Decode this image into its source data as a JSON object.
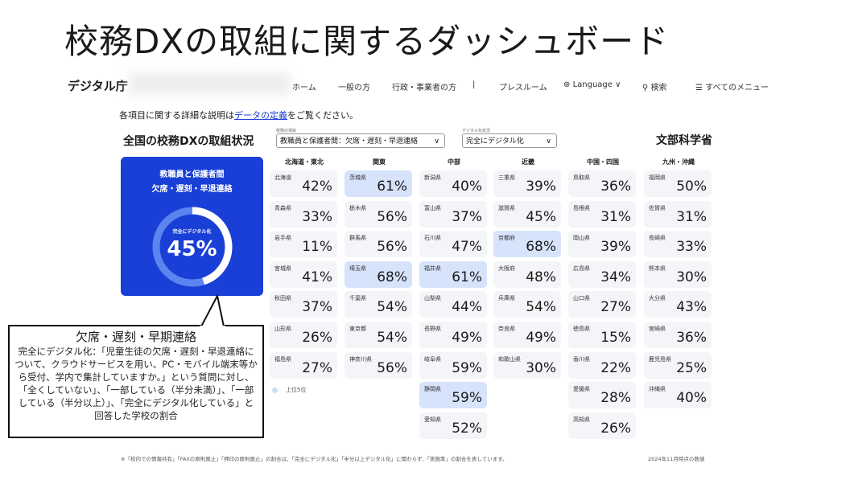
{
  "title": "校務DXの取組に関するダッシュボード",
  "header": {
    "logo": "デジタル庁",
    "nav": [
      "ホーム",
      "一般の方",
      "行政・事業者の方",
      "|",
      "プレスルーム",
      "Language ∨",
      "検索",
      "すべてのメニュー"
    ]
  },
  "intro": {
    "pre": "各項目に関する詳細な説明は",
    "link": "データの定義",
    "post": "をご覧ください。"
  },
  "left_heading": "全国の校務DXの取組状況",
  "filters": [
    {
      "label": "校務の項目",
      "value": "教職員と保護者間：欠席・遅刻・早退連絡"
    },
    {
      "label": "デジタル化状況",
      "value": "完全にデジタル化"
    }
  ],
  "ministry": "文部科学省",
  "summary": {
    "line1": "教職員と保護者間",
    "line2": "欠席・遅刻・早退連絡",
    "label": "完全にデジタル化",
    "value": "45%",
    "fraction": 0.45,
    "colors": {
      "card": "#1a3fd6",
      "arc": "#ffffff",
      "track": "#5b84ef"
    }
  },
  "regions": [
    {
      "name": "北海道・東北",
      "prefs": [
        [
          "北海道",
          "42%",
          0,
          0
        ],
        [
          "青森県",
          "33%",
          1,
          0
        ],
        [
          "岩手県",
          "11%",
          2,
          0
        ],
        [
          "宮城県",
          "41%",
          3,
          0
        ],
        [
          "秋田県",
          "37%",
          4,
          0
        ],
        [
          "山形県",
          "26%",
          5,
          0
        ],
        [
          "福島県",
          "27%",
          6,
          0
        ]
      ]
    },
    {
      "name": "関東",
      "prefs": [
        [
          "茨城県",
          "61%",
          0,
          1
        ],
        [
          "栃木県",
          "56%",
          1,
          0
        ],
        [
          "群馬県",
          "56%",
          2,
          0
        ],
        [
          "埼玉県",
          "68%",
          3,
          1
        ],
        [
          "千葉県",
          "54%",
          4,
          0
        ],
        [
          "東京都",
          "54%",
          5,
          0
        ],
        [
          "神奈川県",
          "56%",
          6,
          0
        ]
      ]
    },
    {
      "name": "中部",
      "prefs": [
        [
          "新潟県",
          "40%",
          0,
          0
        ],
        [
          "富山県",
          "37%",
          1,
          0
        ],
        [
          "石川県",
          "47%",
          2,
          0
        ],
        [
          "福井県",
          "61%",
          3,
          1
        ],
        [
          "山梨県",
          "44%",
          4,
          0
        ],
        [
          "長野県",
          "49%",
          5,
          0
        ],
        [
          "岐阜県",
          "59%",
          6,
          0
        ],
        [
          "静岡県",
          "59%",
          7,
          1
        ],
        [
          "愛知県",
          "52%",
          8,
          0
        ]
      ]
    },
    {
      "name": "近畿",
      "prefs": [
        [
          "三重県",
          "39%",
          0,
          0
        ],
        [
          "滋賀県",
          "45%",
          1,
          0
        ],
        [
          "京都府",
          "68%",
          2,
          1
        ],
        [
          "大阪府",
          "48%",
          3,
          0
        ],
        [
          "兵庫県",
          "54%",
          4,
          0
        ],
        [
          "奈良県",
          "49%",
          5,
          0
        ],
        [
          "和歌山県",
          "30%",
          6,
          0
        ]
      ]
    },
    {
      "name": "中国・四国",
      "prefs": [
        [
          "鳥取県",
          "36%",
          0,
          0
        ],
        [
          "島根県",
          "31%",
          1,
          0
        ],
        [
          "岡山県",
          "39%",
          2,
          0
        ],
        [
          "広島県",
          "34%",
          3,
          0
        ],
        [
          "山口県",
          "27%",
          4,
          0
        ],
        [
          "徳島県",
          "15%",
          5,
          0
        ],
        [
          "香川県",
          "22%",
          6,
          0
        ],
        [
          "愛媛県",
          "28%",
          7,
          0
        ],
        [
          "高知県",
          "26%",
          8,
          0
        ]
      ]
    },
    {
      "name": "九州・沖縄",
      "prefs": [
        [
          "福岡県",
          "50%",
          0,
          0
        ],
        [
          "佐賀県",
          "31%",
          1,
          0
        ],
        [
          "長崎県",
          "33%",
          2,
          0
        ],
        [
          "熊本県",
          "30%",
          3,
          0
        ],
        [
          "大分県",
          "43%",
          4,
          0
        ],
        [
          "宮崎県",
          "36%",
          5,
          0
        ],
        [
          "鹿児島県",
          "25%",
          6,
          0
        ],
        [
          "沖縄県",
          "40%",
          7,
          0
        ]
      ]
    }
  ],
  "legend": "上位5位",
  "footnote": "※「校内での情報共有」「FAXの原則廃止」「押印の原則廃止」の割合は、「完全にデジタル化」「半分以上デジタル化」に関わらず、「実施率」の割合を表しています。",
  "date": "2024年11月時点の数値",
  "callout": {
    "heading": "欠席・遅刻・早期連絡",
    "body": "完全にデジタル化：「児童生徒の欠席・遅刻・早退連絡について、クラウドサービスを用い、PC・モバイル端末等から受付、学内で集計していますか。」という質問に対し、「全くしていない」、「一部している（半分未満）」、「一部している（半分以上）」、「完全にデジタル化している」と回答した学校の割合"
  }
}
